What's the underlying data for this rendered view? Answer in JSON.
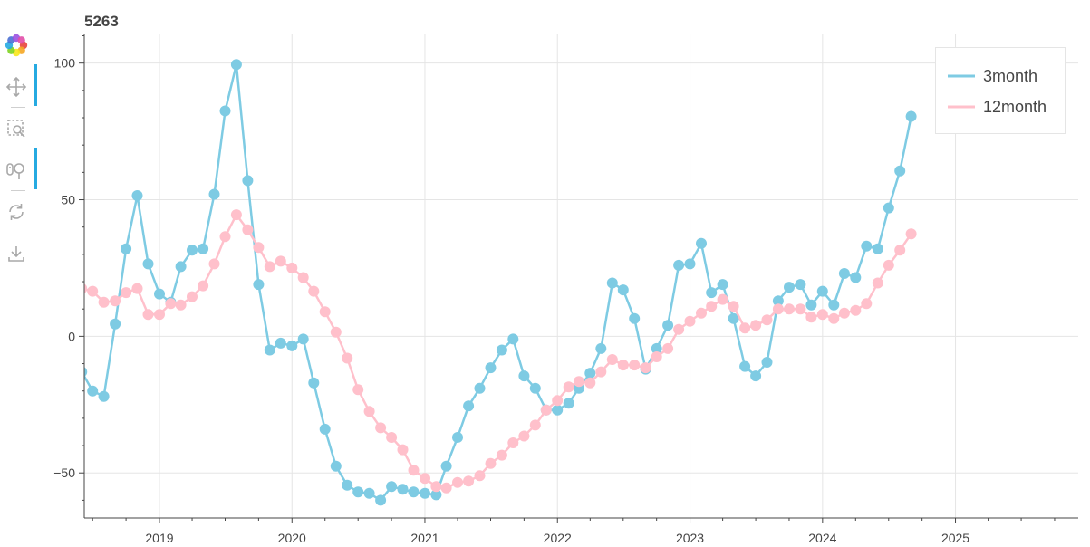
{
  "toolbar": {
    "tools": [
      {
        "name": "bokeh-logo-icon",
        "active": false
      },
      {
        "name": "pan-icon",
        "active": true
      },
      {
        "name": "box-zoom-icon",
        "active": false
      },
      {
        "name": "wheel-zoom-icon",
        "active": true
      },
      {
        "name": "reset-icon",
        "active": false
      },
      {
        "name": "save-icon",
        "active": false
      }
    ]
  },
  "colors": {
    "series_3month": "#7ecbe3",
    "series_12month": "#ffc0cb",
    "grid": "#e5e5e5",
    "axis": "#444444",
    "toolbar_active": "#26aae1"
  },
  "chart_data": {
    "type": "line",
    "title": "5263",
    "xlabel": "",
    "ylabel": "",
    "xlim": [
      "2018-06-08",
      "2025-12-05"
    ],
    "ylim": [
      -66.5,
      110.5
    ],
    "x_ticks": [
      "2019",
      "2020",
      "2021",
      "2022",
      "2023",
      "2024",
      "2025"
    ],
    "y_ticks": [
      -50,
      0,
      50,
      100
    ],
    "grid": true,
    "legend_position": "top-right",
    "x": [
      "2018-06-01",
      "2018-07-01",
      "2018-08-01",
      "2018-09-01",
      "2018-10-01",
      "2018-11-01",
      "2018-12-01",
      "2019-01-01",
      "2019-02-01",
      "2019-03-01",
      "2019-04-01",
      "2019-05-01",
      "2019-06-01",
      "2019-07-01",
      "2019-08-01",
      "2019-09-01",
      "2019-10-01",
      "2019-11-01",
      "2019-12-01",
      "2020-01-01",
      "2020-02-01",
      "2020-03-01",
      "2020-04-01",
      "2020-05-01",
      "2020-06-01",
      "2020-07-01",
      "2020-08-01",
      "2020-09-01",
      "2020-10-01",
      "2020-11-01",
      "2020-12-01",
      "2021-01-01",
      "2021-02-01",
      "2021-03-01",
      "2021-04-01",
      "2021-05-01",
      "2021-06-01",
      "2021-07-01",
      "2021-08-01",
      "2021-09-01",
      "2021-10-01",
      "2021-11-01",
      "2021-12-01",
      "2022-01-01",
      "2022-02-01",
      "2022-03-01",
      "2022-04-01",
      "2022-05-01",
      "2022-06-01",
      "2022-07-01",
      "2022-08-01",
      "2022-09-01",
      "2022-10-01",
      "2022-11-01",
      "2022-12-01",
      "2023-01-01",
      "2023-02-01",
      "2023-03-01",
      "2023-04-01",
      "2023-05-01",
      "2023-06-01",
      "2023-07-01",
      "2023-08-01",
      "2023-09-01",
      "2023-10-01",
      "2023-11-01",
      "2023-12-01",
      "2024-01-01",
      "2024-02-01",
      "2024-03-01",
      "2024-04-01",
      "2024-05-01",
      "2024-06-01",
      "2024-07-01",
      "2024-08-01",
      "2024-09-01"
    ],
    "series": [
      {
        "name": "3month",
        "values": [
          -13,
          -20,
          -22,
          4.5,
          32,
          51.5,
          26.5,
          15.5,
          12.5,
          25.5,
          31.5,
          32,
          52,
          82.5,
          99.5,
          57,
          19,
          -5,
          -2.5,
          -3.5,
          -1,
          -17,
          -34,
          -47.5,
          -54.5,
          -57,
          -57.5,
          -60,
          -55,
          -56,
          -57,
          -57.5,
          -58,
          -47.5,
          -37,
          -25.5,
          -19,
          -11.5,
          -5,
          -1,
          -14.5,
          -19,
          -27,
          -27,
          -24.5,
          -19,
          -13.5,
          -4.5,
          19.5,
          17,
          6.5,
          -12,
          -4.5,
          4,
          26,
          26.5,
          34,
          16,
          19,
          6.5,
          -11,
          -14.5,
          -9.5,
          13,
          18,
          19,
          11.5,
          16.5,
          11.5,
          23,
          21.5,
          33,
          32,
          47,
          60.5,
          80.5
        ]
      },
      {
        "name": "12month",
        "values": [
          17.5,
          16.5,
          12.5,
          13,
          16,
          17.5,
          8,
          8,
          12,
          11.5,
          14.5,
          18.5,
          26.5,
          36.5,
          44.5,
          39,
          32.5,
          25.5,
          27.5,
          25,
          21.5,
          16.5,
          9,
          1.5,
          -8,
          -19.5,
          -27.5,
          -33.5,
          -37,
          -41.5,
          -49,
          -52,
          -55,
          -55.5,
          -53.5,
          -53,
          -51,
          -46.5,
          -43.5,
          -39,
          -36.5,
          -32.5,
          -27,
          -23.5,
          -18.5,
          -16.5,
          -17,
          -13,
          -8.5,
          -10.5,
          -10.5,
          -11.5,
          -7.5,
          -4.5,
          2.5,
          5.5,
          8.5,
          11,
          13.5,
          11,
          3,
          4,
          6,
          10,
          10,
          10,
          7,
          8,
          6.5,
          8.5,
          9.5,
          12,
          19.5,
          26,
          31.5,
          37.5
        ]
      }
    ]
  }
}
